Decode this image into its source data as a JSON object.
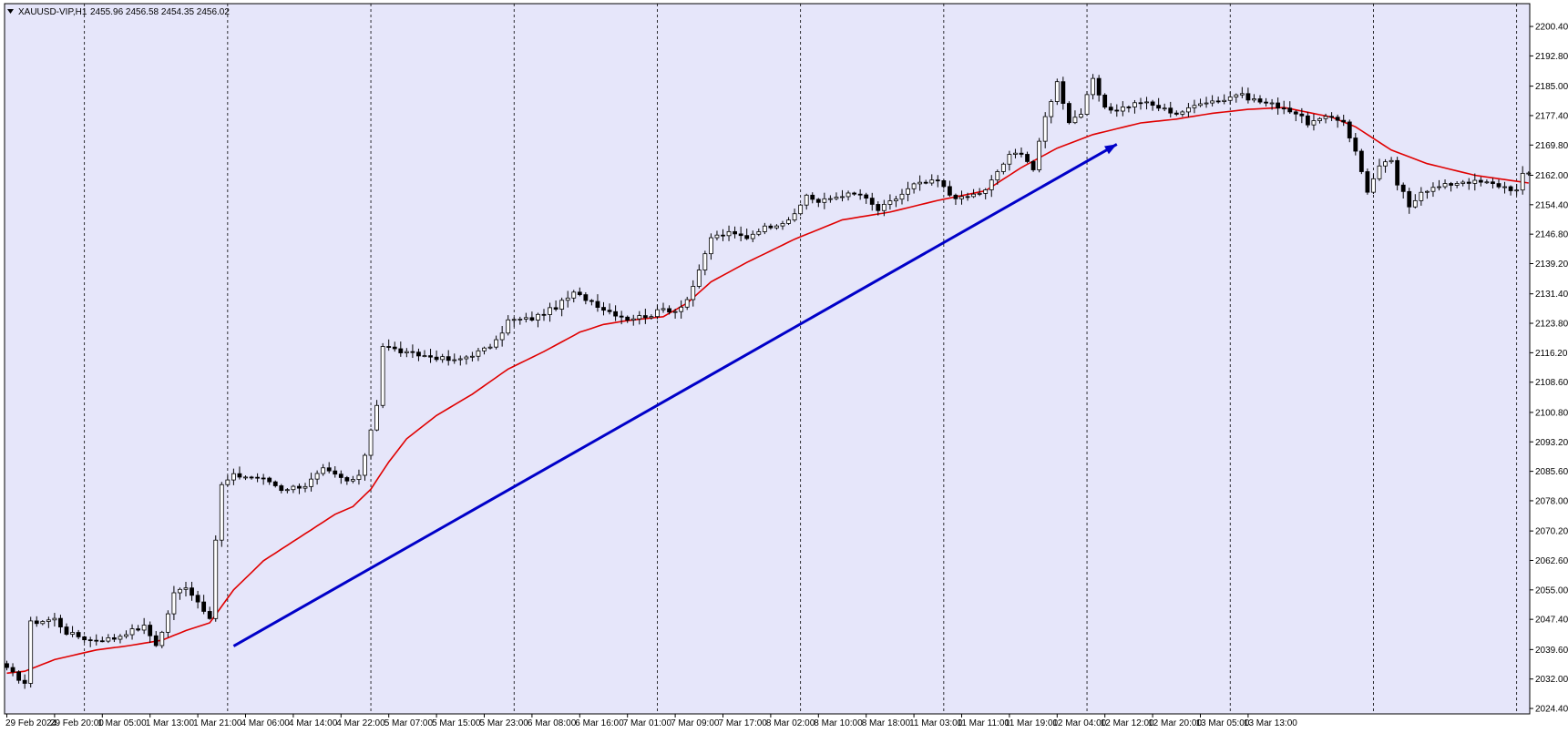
{
  "window": {
    "symbol_header": "XAUUSD-VIP,H1",
    "ohlc_header": "2455.96 2456.58 2454.35 2456.02"
  },
  "colors": {
    "plot_bg": "#E6E6FA",
    "frame_bg": "#FFFFFF",
    "candle_bull_fill": "#FFFFFF",
    "candle_bear_fill": "#000000",
    "candle_outline": "#000000",
    "ma_line": "#E00000",
    "trend_arrow": "#0000C8",
    "grid": "#000000"
  },
  "chart_data": {
    "type": "candlestick",
    "timeframe": "H1",
    "y_axis_labels": [
      "2200.40",
      "2192.80",
      "2185.00",
      "2177.40",
      "2169.80",
      "2162.00",
      "2154.40",
      "2146.80",
      "2139.20",
      "2131.40",
      "2123.80",
      "2116.20",
      "2108.60",
      "2100.80",
      "2093.20",
      "2085.60",
      "2078.00",
      "2070.20",
      "2062.60",
      "2055.00",
      "2047.40",
      "2039.60",
      "2032.00",
      "2024.40"
    ],
    "ylim": [
      2023.0,
      2203.0
    ],
    "x_axis_labels": [
      "29 Feb 2024",
      "29 Feb 20:00",
      "1 Mar 05:00",
      "1 Mar 13:00",
      "1 Mar 21:00",
      "4 Mar 06:00",
      "4 Mar 14:00",
      "4 Mar 22:00",
      "5 Mar 07:00",
      "5 Mar 15:00",
      "5 Mar 23:00",
      "6 Mar 08:00",
      "6 Mar 16:00",
      "7 Mar 01:00",
      "7 Mar 09:00",
      "7 Mar 17:00",
      "8 Mar 02:00",
      "8 Mar 10:00",
      "8 Mar 18:00",
      "11 Mar 03:00",
      "11 Mar 11:00",
      "11 Mar 19:00",
      "12 Mar 04:00",
      "12 Mar 12:00",
      "12 Mar 20:00",
      "13 Mar 05:00",
      "13 Mar 13:00"
    ],
    "candle_count": 256,
    "x_label_step_bars": 8,
    "vertical_grid_step_bars": 24,
    "candle_anchors": [
      [
        0,
        2034.5
      ],
      [
        3,
        2031.0
      ],
      [
        4,
        2046.5
      ],
      [
        8,
        2047.5
      ],
      [
        10,
        2044.0
      ],
      [
        14,
        2042.0
      ],
      [
        18,
        2042.5
      ],
      [
        20,
        2044.0
      ],
      [
        23,
        2045.5
      ],
      [
        25,
        2041.0
      ],
      [
        26,
        2044.0
      ],
      [
        28,
        2054.0
      ],
      [
        30,
        2056.0
      ],
      [
        33,
        2050.0
      ],
      [
        34,
        2047.0
      ],
      [
        35,
        2068.0
      ],
      [
        36,
        2082.0
      ],
      [
        38,
        2084.5
      ],
      [
        42,
        2084.0
      ],
      [
        44,
        2083.0
      ],
      [
        46,
        2081.0
      ],
      [
        50,
        2082.0
      ],
      [
        53,
        2086.0
      ],
      [
        57,
        2083.0
      ],
      [
        59,
        2084.0
      ],
      [
        60,
        2090.0
      ],
      [
        62,
        2103.0
      ],
      [
        63,
        2118.0
      ],
      [
        65,
        2117.0
      ],
      [
        67,
        2116.0
      ],
      [
        72,
        2115.0
      ],
      [
        75,
        2114.0
      ],
      [
        80,
        2117.0
      ],
      [
        82,
        2119.0
      ],
      [
        84,
        2124.5
      ],
      [
        88,
        2125.0
      ],
      [
        92,
        2128.0
      ],
      [
        95,
        2131.5
      ],
      [
        98,
        2129.5
      ],
      [
        100,
        2127.5
      ],
      [
        104,
        2125.0
      ],
      [
        108,
        2126.0
      ],
      [
        110,
        2127.5
      ],
      [
        112,
        2127.0
      ],
      [
        114,
        2130.0
      ],
      [
        116,
        2137.0
      ],
      [
        118,
        2146.0
      ],
      [
        121,
        2147.0
      ],
      [
        124,
        2146.0
      ],
      [
        126,
        2148.0
      ],
      [
        130,
        2150.0
      ],
      [
        132,
        2151.5
      ],
      [
        134,
        2157.0
      ],
      [
        136,
        2155.0
      ],
      [
        140,
        2157.0
      ],
      [
        143,
        2157.0
      ],
      [
        146,
        2153.0
      ],
      [
        149,
        2156.0
      ],
      [
        152,
        2159.5
      ],
      [
        156,
        2160.5
      ],
      [
        158,
        2157.0
      ],
      [
        160,
        2156.0
      ],
      [
        164,
        2158.0
      ],
      [
        166,
        2163.0
      ],
      [
        168,
        2167.0
      ],
      [
        170,
        2168.0
      ],
      [
        172,
        2163.5
      ],
      [
        174,
        2177.0
      ],
      [
        176,
        2186.0
      ],
      [
        178,
        2176.0
      ],
      [
        180,
        2178.0
      ],
      [
        182,
        2186.5
      ],
      [
        184,
        2179.0
      ],
      [
        186,
        2179.0
      ],
      [
        190,
        2181.0
      ],
      [
        194,
        2179.0
      ],
      [
        196,
        2178.0
      ],
      [
        198,
        2179.0
      ],
      [
        200,
        2181.0
      ],
      [
        204,
        2181.5
      ],
      [
        206,
        2183.0
      ],
      [
        210,
        2181.0
      ],
      [
        214,
        2179.5
      ],
      [
        216,
        2178.0
      ],
      [
        218,
        2175.5
      ],
      [
        222,
        2177.0
      ],
      [
        224,
        2176.0
      ],
      [
        226,
        2168.0
      ],
      [
        228,
        2158.0
      ],
      [
        230,
        2164.0
      ],
      [
        232,
        2166.0
      ],
      [
        233,
        2159.0
      ],
      [
        234,
        2157.5
      ],
      [
        235,
        2154.0
      ],
      [
        237,
        2158.0
      ],
      [
        240,
        2159.0
      ],
      [
        244,
        2160.5
      ],
      [
        248,
        2160.0
      ],
      [
        251,
        2159.0
      ],
      [
        253,
        2158.0
      ],
      [
        254,
        2162.0
      ],
      [
        255,
        2162.5
      ]
    ],
    "series": [
      {
        "kind": "moving_average",
        "points": [
          [
            0,
            2033.5
          ],
          [
            3,
            2034.0
          ],
          [
            8,
            2037.0
          ],
          [
            15,
            2039.5
          ],
          [
            20,
            2040.5
          ],
          [
            26,
            2042.0
          ],
          [
            30,
            2044.5
          ],
          [
            34,
            2046.5
          ],
          [
            38,
            2055.0
          ],
          [
            43,
            2062.5
          ],
          [
            50,
            2069.5
          ],
          [
            55,
            2074.5
          ],
          [
            58,
            2076.5
          ],
          [
            61,
            2081.0
          ],
          [
            64,
            2088.0
          ],
          [
            67,
            2094.0
          ],
          [
            72,
            2100.0
          ],
          [
            78,
            2105.5
          ],
          [
            84,
            2112.0
          ],
          [
            90,
            2116.5
          ],
          [
            96,
            2121.5
          ],
          [
            100,
            2123.5
          ],
          [
            104,
            2124.5
          ],
          [
            110,
            2125.5
          ],
          [
            114,
            2129.0
          ],
          [
            118,
            2134.5
          ],
          [
            124,
            2139.5
          ],
          [
            132,
            2145.5
          ],
          [
            140,
            2150.5
          ],
          [
            148,
            2152.5
          ],
          [
            156,
            2155.5
          ],
          [
            164,
            2158.0
          ],
          [
            170,
            2164.0
          ],
          [
            176,
            2169.0
          ],
          [
            182,
            2172.5
          ],
          [
            190,
            2175.5
          ],
          [
            196,
            2176.5
          ],
          [
            202,
            2178.0
          ],
          [
            208,
            2179.0
          ],
          [
            214,
            2179.5
          ],
          [
            222,
            2177.0
          ],
          [
            226,
            2174.5
          ],
          [
            232,
            2168.5
          ],
          [
            238,
            2165.0
          ],
          [
            246,
            2162.0
          ],
          [
            255,
            2160.0
          ]
        ]
      }
    ],
    "annotations": [
      {
        "type": "trend_arrow",
        "from": [
          38,
          2040.5
        ],
        "to": [
          186,
          2170.0
        ]
      }
    ],
    "legend": "none",
    "grid": "vertical dashed"
  }
}
